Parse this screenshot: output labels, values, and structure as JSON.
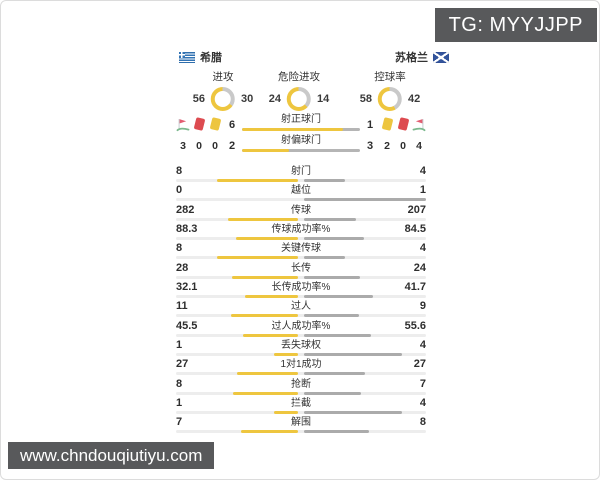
{
  "watermarks": {
    "tg": "TG: MYYJJPP",
    "site": "www.chndouqiutiyu.com"
  },
  "teams": {
    "home": "希腊",
    "away": "苏格兰"
  },
  "colors": {
    "home_fill": "#EEC63F",
    "away_bar_fill": "#ABABAB",
    "away_donut_fill": "#C9C9C9",
    "shot_bar_bg": "#B5B5B5",
    "track": "#EDEDED",
    "watermark_bg": "#58595B",
    "red_card": "#DD4B50",
    "yellow_card": "#EDC53F",
    "corner_flag": "#E25C70",
    "corner_grass": "#7CB98E"
  },
  "donuts": [
    {
      "label": "进攻",
      "home": "56",
      "away": "30"
    },
    {
      "label": "危险进攻",
      "home": "24",
      "away": "14"
    },
    {
      "label": "控球率",
      "home": "58",
      "away": "42"
    }
  ],
  "discipline": {
    "home": {
      "icons": [
        "corner-flag",
        "red-card",
        "yellow-card"
      ],
      "values": [
        "3",
        "0",
        "0"
      ]
    },
    "away": {
      "icons": [
        "yellow-card",
        "red-card",
        "corner-flag"
      ],
      "values": [
        "2",
        "0",
        "4"
      ]
    }
  },
  "shot_rows": [
    {
      "label": "射正球门",
      "home": "6",
      "away": "1"
    },
    {
      "label": "射偏球门",
      "home": "2",
      "away": "3"
    }
  ],
  "stats": [
    {
      "label": "射门",
      "home": "8",
      "away": "4"
    },
    {
      "label": "越位",
      "home": "0",
      "away": "1"
    },
    {
      "label": "传球",
      "home": "282",
      "away": "207"
    },
    {
      "label": "传球成功率%",
      "home": "88.3",
      "away": "84.5"
    },
    {
      "label": "关键传球",
      "home": "8",
      "away": "4"
    },
    {
      "label": "长传",
      "home": "28",
      "away": "24"
    },
    {
      "label": "长传成功率%",
      "home": "32.1",
      "away": "41.7"
    },
    {
      "label": "过人",
      "home": "11",
      "away": "9"
    },
    {
      "label": "过人成功率%",
      "home": "45.5",
      "away": "55.6"
    },
    {
      "label": "丢失球权",
      "home": "1",
      "away": "4"
    },
    {
      "label": "1对1成功",
      "home": "27",
      "away": "27"
    },
    {
      "label": "抢断",
      "home": "8",
      "away": "7"
    },
    {
      "label": "拦截",
      "home": "1",
      "away": "4"
    },
    {
      "label": "解围",
      "home": "7",
      "away": "8"
    }
  ],
  "chart_data": [
    {
      "type": "pie",
      "title": "进攻",
      "legend": [
        "希腊",
        "苏格兰"
      ],
      "values": [
        56,
        30
      ]
    },
    {
      "type": "pie",
      "title": "危险进攻",
      "legend": [
        "希腊",
        "苏格兰"
      ],
      "values": [
        24,
        14
      ]
    },
    {
      "type": "pie",
      "title": "控球率",
      "legend": [
        "希腊",
        "苏格兰"
      ],
      "values": [
        58,
        42
      ]
    },
    {
      "type": "bar",
      "title": "希腊 vs 苏格兰 技术统计",
      "categories": [
        "射正球门",
        "射偏球门",
        "射门",
        "越位",
        "传球",
        "传球成功率%",
        "关键传球",
        "长传",
        "长传成功率%",
        "过人",
        "过人成功率%",
        "丢失球权",
        "1对1成功",
        "抢断",
        "拦截",
        "解围"
      ],
      "series": [
        {
          "name": "希腊",
          "values": [
            6,
            2,
            8,
            0,
            282,
            88.3,
            8,
            28,
            32.1,
            11,
            45.5,
            1,
            27,
            8,
            1,
            7
          ]
        },
        {
          "name": "苏格兰",
          "values": [
            1,
            3,
            4,
            1,
            207,
            84.5,
            4,
            24,
            41.7,
            9,
            55.6,
            4,
            27,
            7,
            4,
            8
          ]
        }
      ],
      "legend_position": "sides",
      "grid": false
    },
    {
      "type": "table",
      "title": "角球与红黄牌",
      "categories": [
        "角球",
        "红牌",
        "黄牌"
      ],
      "series": [
        {
          "name": "希腊",
          "values": [
            3,
            0,
            0
          ]
        },
        {
          "name": "苏格兰",
          "values": [
            4,
            0,
            2
          ]
        }
      ]
    }
  ]
}
